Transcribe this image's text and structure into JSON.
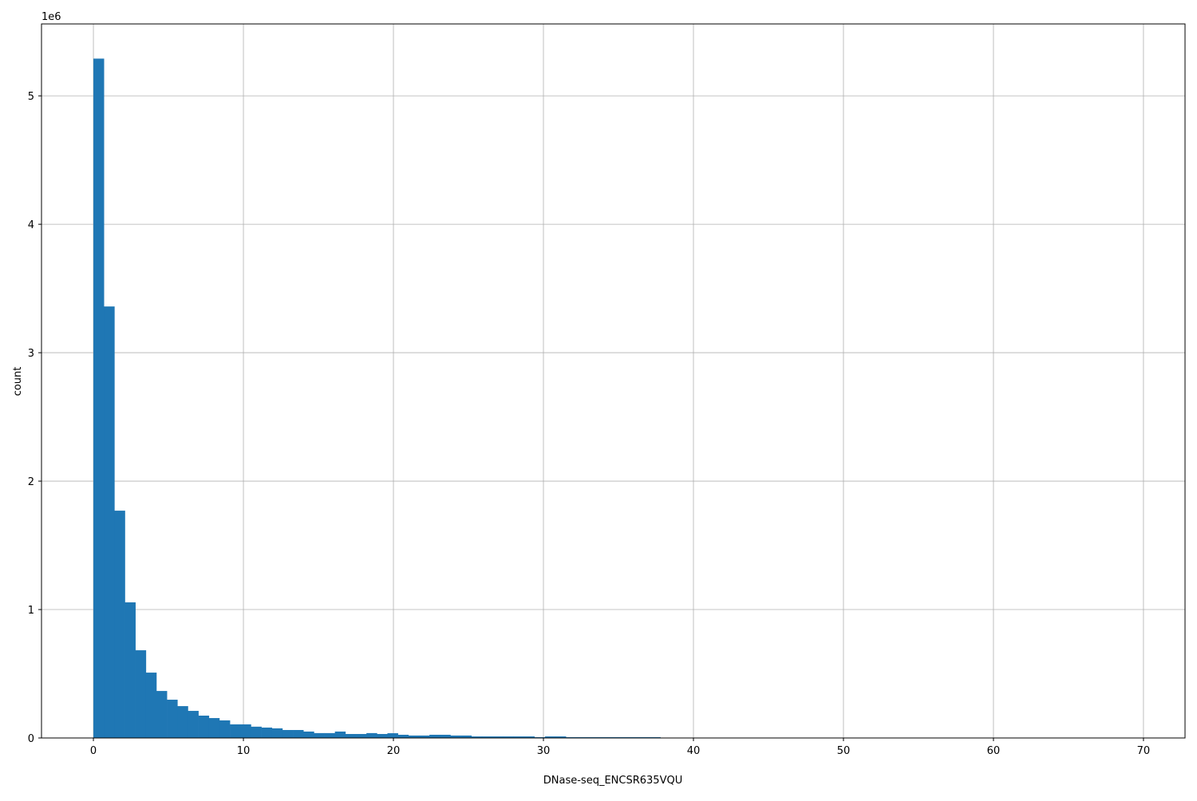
{
  "chart_data": {
    "type": "bar",
    "subtype": "histogram",
    "xlabel": "DNase-seq_ENCSR635VQU",
    "ylabel": "count",
    "y_offset_label": "1e6",
    "bin_start": 0,
    "bin_width": 0.7,
    "counts": [
      5290000,
      3360000,
      1770000,
      1056000,
      683000,
      509000,
      366000,
      298000,
      248000,
      211000,
      174000,
      155000,
      137000,
      106000,
      106000,
      88000,
      81000,
      75000,
      62000,
      62000,
      50000,
      38000,
      38000,
      50000,
      31000,
      31000,
      38000,
      31000,
      37000,
      25000,
      19000,
      19000,
      25000,
      25000,
      19000,
      19000,
      12000,
      12000,
      12000,
      12000,
      12000,
      12000,
      6000,
      12000,
      12000,
      6000,
      6000,
      6000,
      6000,
      6000,
      6000,
      6000,
      6000,
      6000,
      0,
      0,
      0,
      0,
      0,
      0,
      0,
      0,
      0,
      0,
      0,
      0,
      0,
      0,
      0,
      0,
      0,
      0,
      0,
      0,
      0,
      0,
      0,
      0,
      0,
      0,
      0,
      0,
      0,
      0,
      0,
      0,
      0,
      0,
      0,
      0,
      0,
      0,
      0,
      0,
      0,
      0,
      0,
      0,
      0,
      0
    ],
    "xlim": [
      -3.46,
      72.77
    ],
    "ylim": [
      0,
      5560000
    ],
    "xticks": [
      "0",
      "10",
      "20",
      "30",
      "40",
      "50",
      "60",
      "70"
    ],
    "xtick_values": [
      0,
      10,
      20,
      30,
      40,
      50,
      60,
      70
    ],
    "yticks": [
      "0",
      "1",
      "2",
      "3",
      "4",
      "5"
    ],
    "ytick_values": [
      0,
      1000000,
      2000000,
      3000000,
      4000000,
      5000000
    ],
    "grid": true,
    "bar_color": "#1f77b4",
    "grid_color": "#b0b0b0"
  }
}
